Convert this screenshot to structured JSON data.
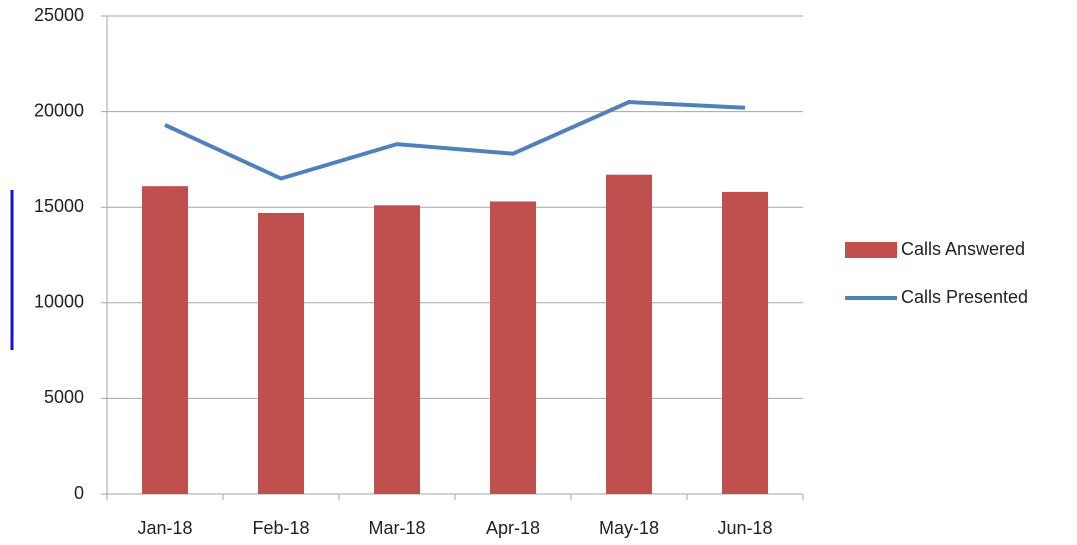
{
  "chart_data": {
    "type": "combo",
    "categories": [
      "Jan-18",
      "Feb-18",
      "Mar-18",
      "Apr-18",
      "May-18",
      "Jun-18"
    ],
    "series": [
      {
        "name": "Calls Answered",
        "type": "bar",
        "color": "#c0504d",
        "values": [
          16100,
          14700,
          15100,
          15300,
          16700,
          15800
        ]
      },
      {
        "name": "Calls Presented",
        "type": "line",
        "color": "#4f81bd",
        "values": [
          19300,
          16500,
          18300,
          17800,
          20500,
          20200
        ]
      }
    ],
    "ylim": [
      0,
      25000
    ],
    "yticks": [
      0,
      5000,
      10000,
      15000,
      20000,
      25000
    ],
    "grid": true,
    "legend": "right"
  }
}
